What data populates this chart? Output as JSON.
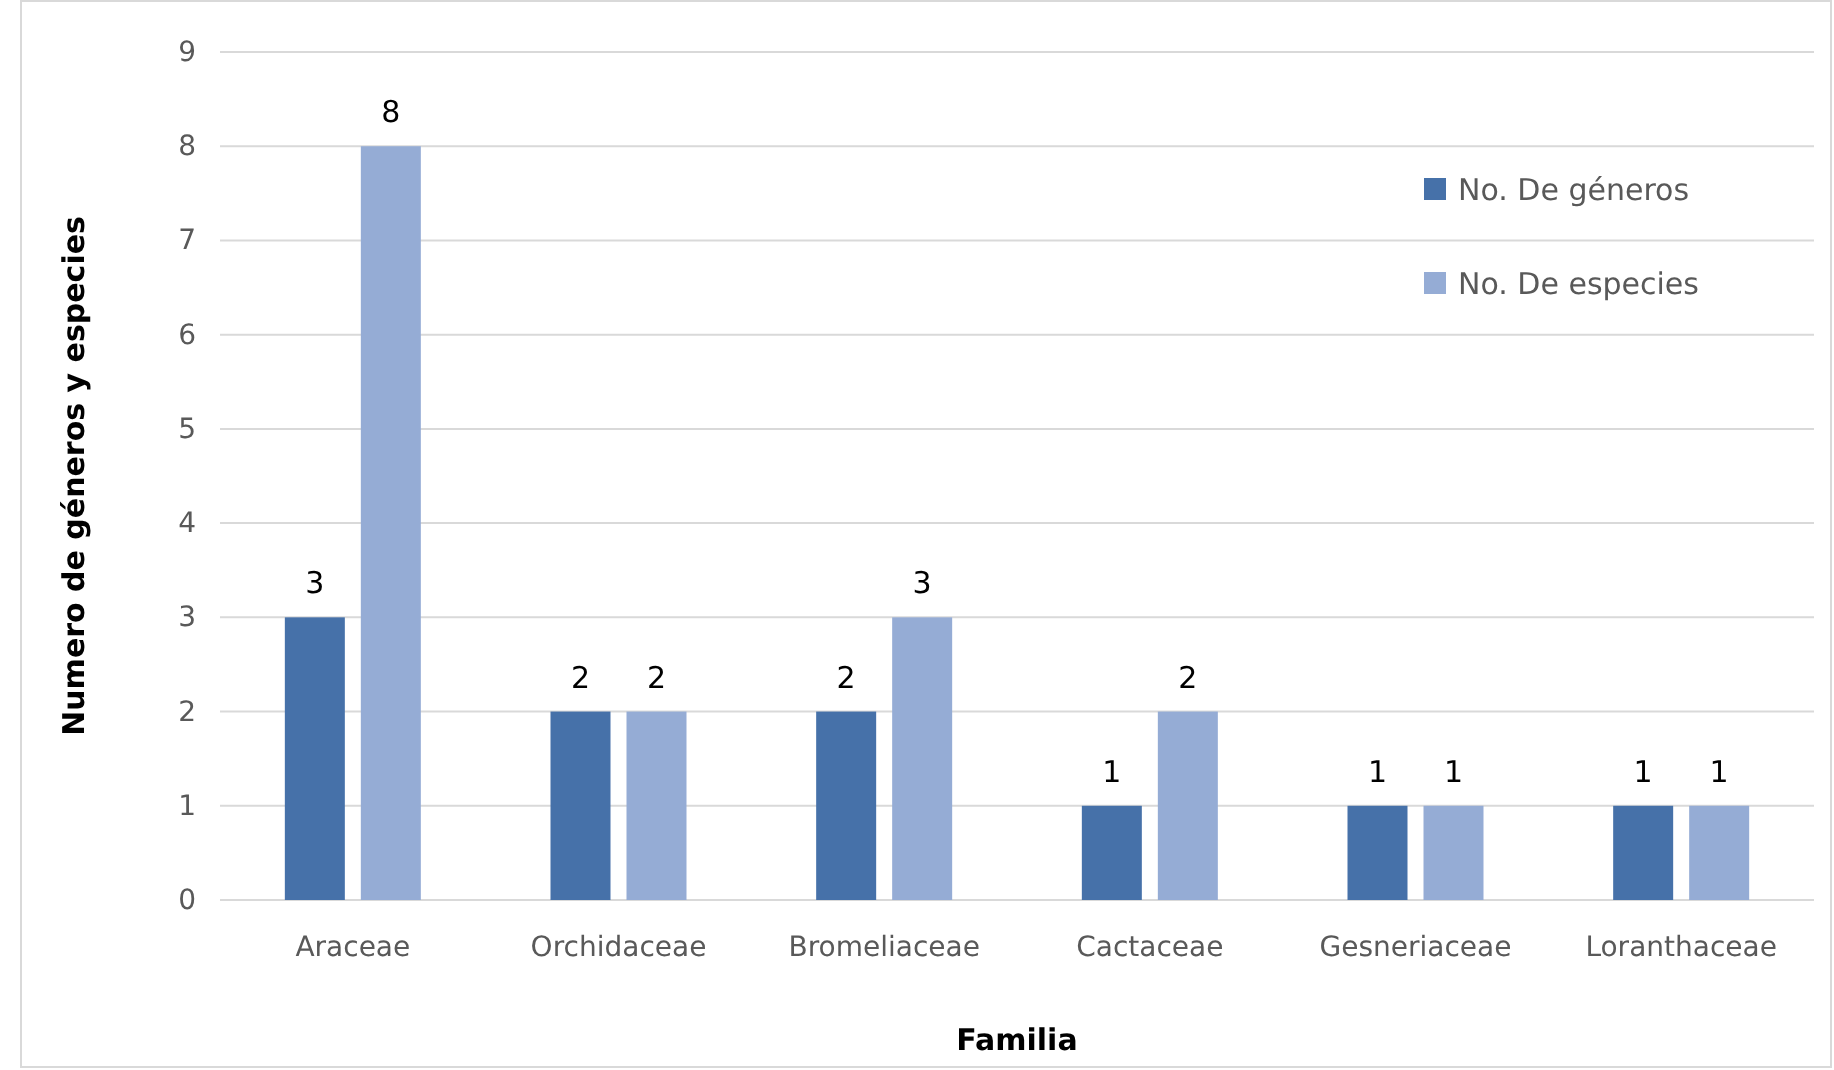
{
  "chart_data": {
    "type": "bar",
    "xlabel": "Familia",
    "ylabel": "Numero de géneros y especies",
    "categories": [
      "Araceae",
      "Orchidaceae",
      "Bromeliaceae",
      "Cactaceae",
      "Gesneriaceae",
      "Loranthaceae"
    ],
    "series": [
      {
        "name": "No. De géneros",
        "color": "#4671a9",
        "values": [
          3,
          2,
          2,
          1,
          1,
          1
        ]
      },
      {
        "name": "No. De especies",
        "color": "#95acd5",
        "values": [
          8,
          2,
          3,
          2,
          1,
          1
        ]
      }
    ],
    "ylim": [
      0,
      9
    ],
    "yticks": [
      0,
      1,
      2,
      3,
      4,
      5,
      6,
      7,
      8,
      9
    ],
    "grid": "y",
    "legend": "top right",
    "data_labels": true
  }
}
